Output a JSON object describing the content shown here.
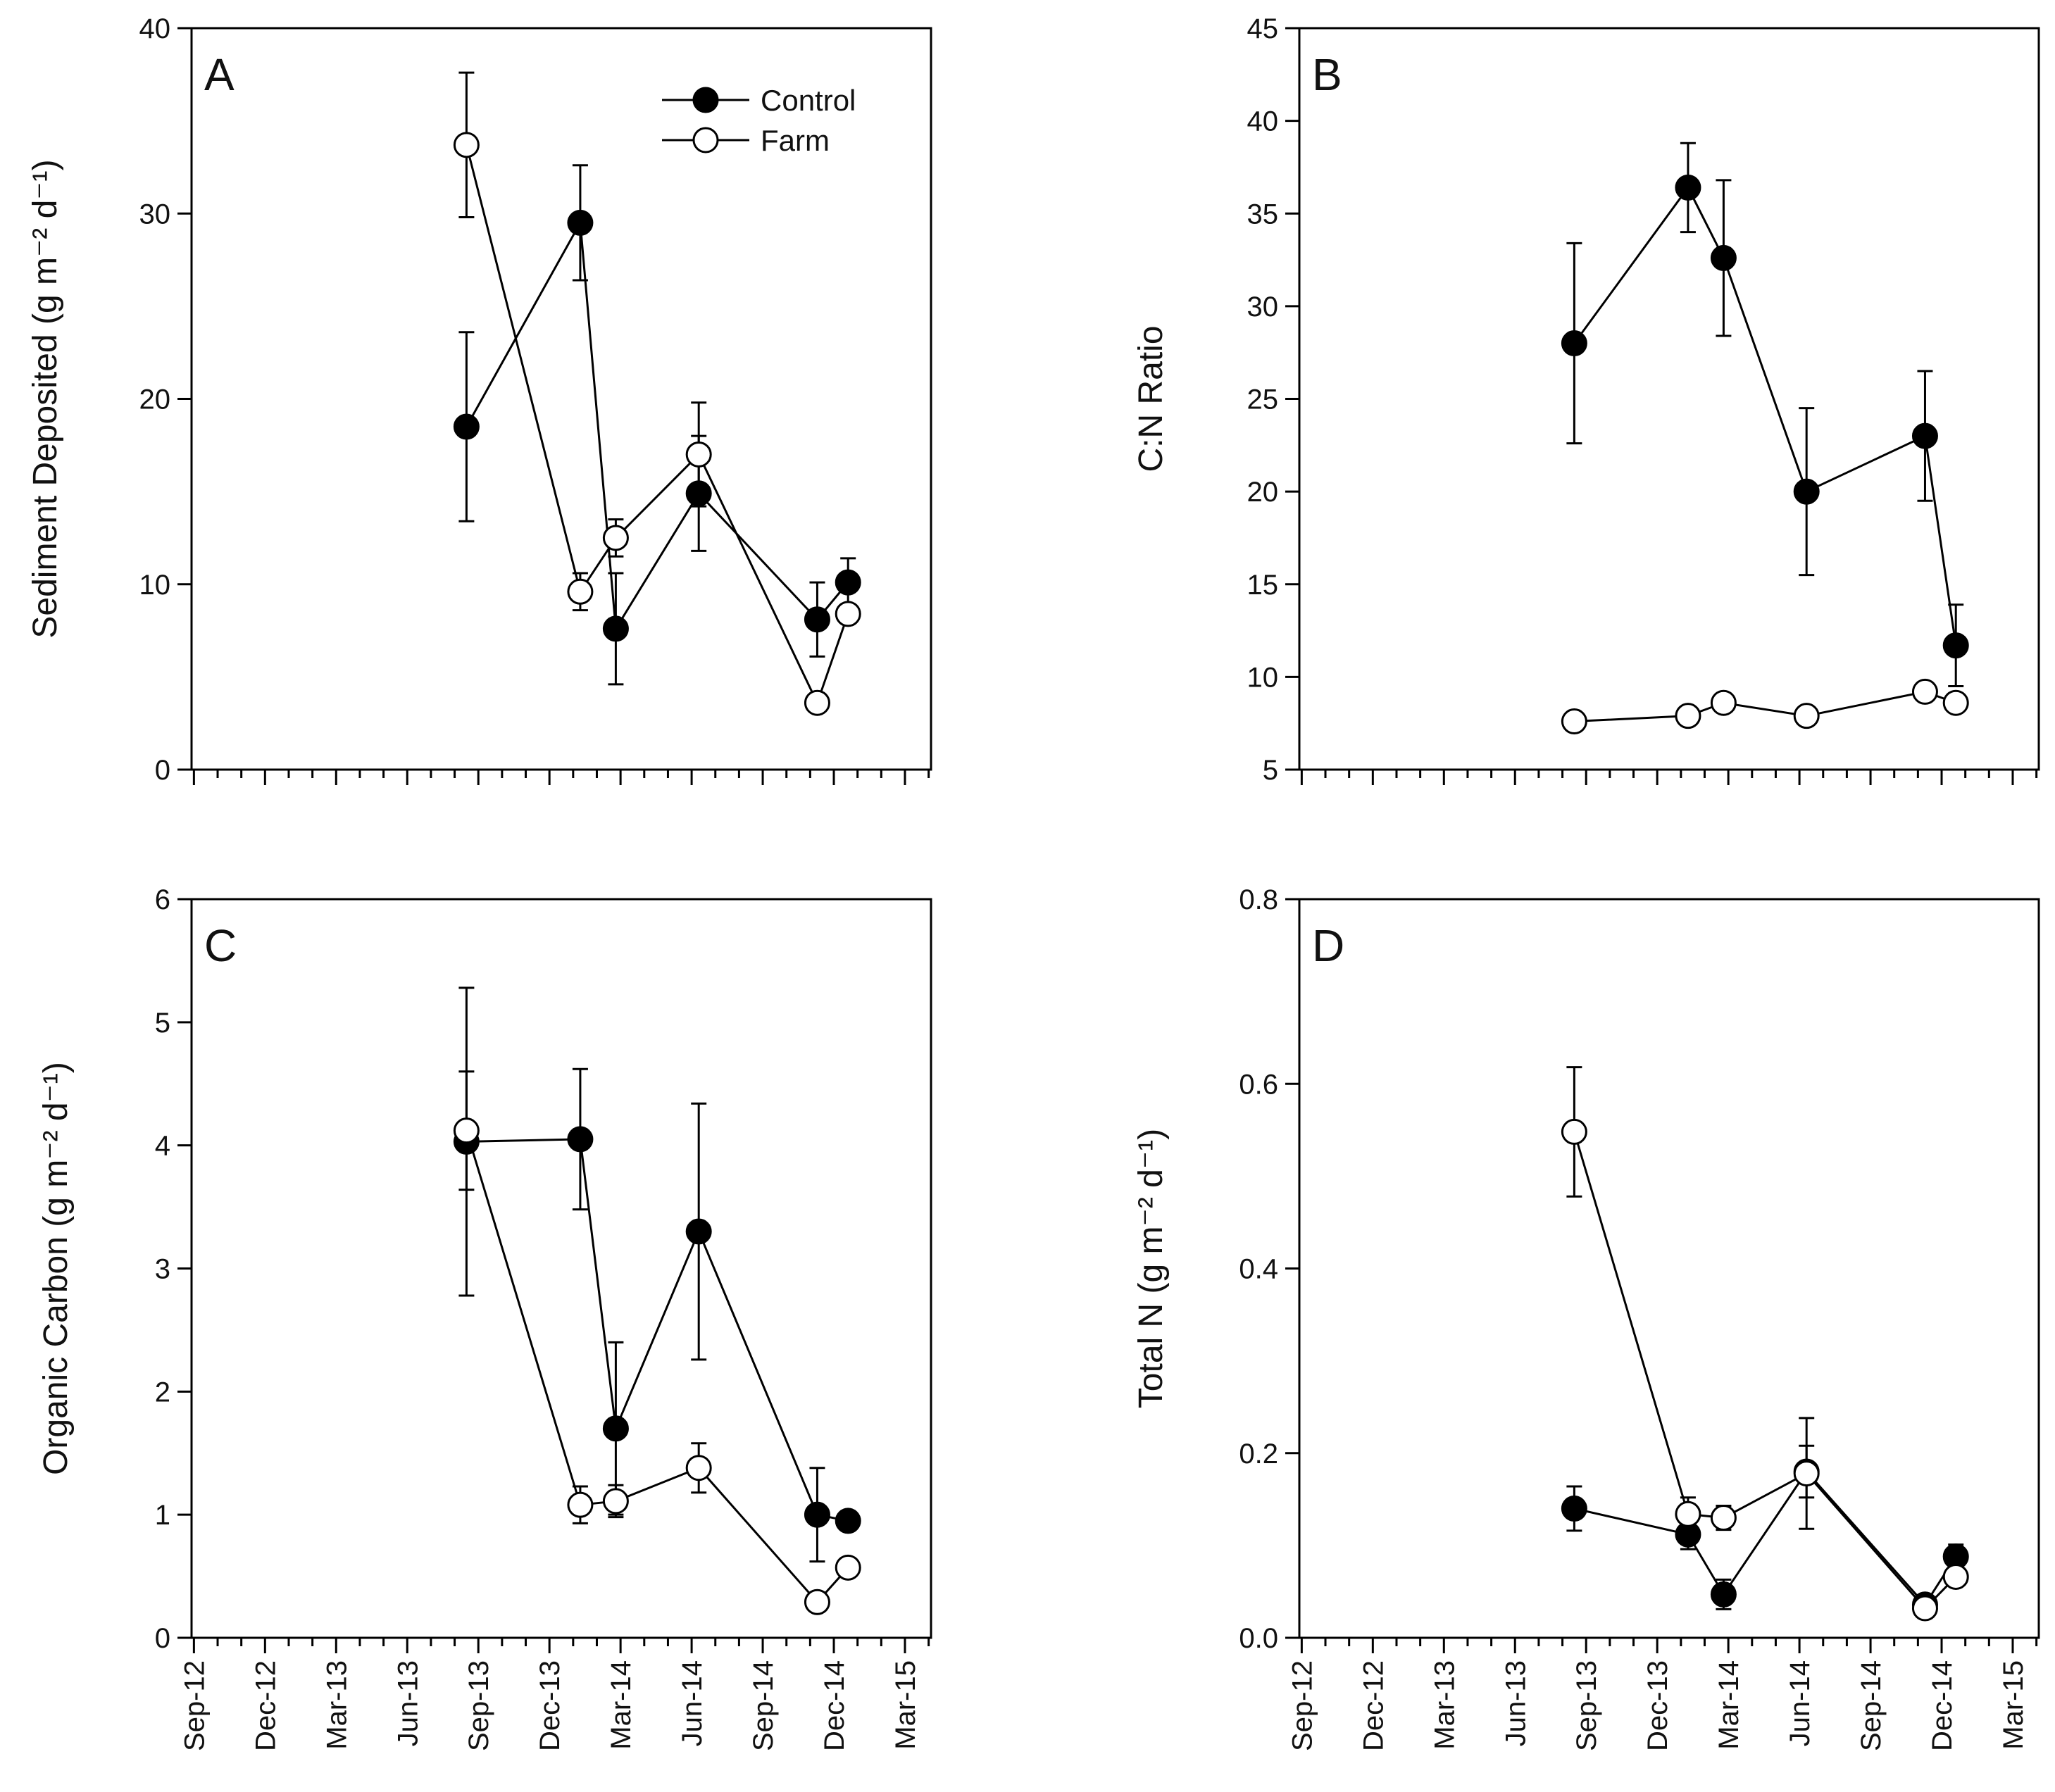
{
  "chart_data": [
    {
      "type": "line",
      "panel": "A",
      "ylabel": "Sediment Deposited (g m⁻² d⁻¹)",
      "ylim": [
        0,
        40
      ],
      "yticks": [
        "0",
        "10",
        "20",
        "30",
        "40"
      ],
      "xtick_labels": [
        "Sep-12",
        "Dec-12",
        "Mar-13",
        "Jun-13",
        "Sep-13",
        "Dec-13",
        "Mar-14",
        "Jun-14",
        "Sep-14",
        "Dec-14",
        "Mar-15"
      ],
      "legend": {
        "position": "top-right",
        "entries": [
          "Control",
          "Farm"
        ]
      },
      "series": [
        {
          "name": "Control",
          "marker": "filled",
          "x": [
            11.5,
            16.3,
            17.8,
            21.3,
            26.3,
            27.6
          ],
          "values": [
            18.5,
            29.5,
            7.6,
            14.9,
            8.1,
            10.1
          ],
          "errors": [
            5.1,
            3.1,
            3.0,
            3.1,
            2.0,
            1.3
          ]
        },
        {
          "name": "Farm",
          "marker": "open",
          "x": [
            11.5,
            16.3,
            17.8,
            21.3,
            26.3,
            27.6
          ],
          "values": [
            33.7,
            9.6,
            12.5,
            17.0,
            3.6,
            8.4
          ],
          "errors": [
            3.9,
            1.0,
            1.0,
            2.8,
            0.3,
            0.5
          ]
        }
      ]
    },
    {
      "type": "line",
      "panel": "B",
      "ylabel": "C:N Ratio",
      "ylim": [
        5,
        45
      ],
      "yticks": [
        "5",
        "10",
        "15",
        "20",
        "25",
        "30",
        "35",
        "40",
        "45"
      ],
      "xtick_labels": [
        "Sep-12",
        "Dec-12",
        "Mar-13",
        "Jun-13",
        "Sep-13",
        "Dec-13",
        "Mar-14",
        "Jun-14",
        "Sep-14",
        "Dec-14",
        "Mar-15"
      ],
      "series": [
        {
          "name": "Control",
          "marker": "filled",
          "x": [
            11.5,
            16.3,
            17.8,
            21.3,
            26.3,
            27.6
          ],
          "values": [
            28.0,
            36.4,
            32.6,
            20.0,
            23.0,
            11.7
          ],
          "errors": [
            5.4,
            2.4,
            4.2,
            4.5,
            3.5,
            2.2
          ]
        },
        {
          "name": "Farm",
          "marker": "open",
          "x": [
            11.5,
            16.3,
            17.8,
            21.3,
            26.3,
            27.6
          ],
          "values": [
            7.6,
            7.9,
            8.6,
            7.9,
            9.2,
            8.6
          ],
          "errors": [
            0.2,
            0.2,
            0.2,
            0.2,
            0.3,
            0.3
          ]
        }
      ]
    },
    {
      "type": "line",
      "panel": "C",
      "ylabel": "Organic Carbon (g m⁻² d⁻¹)",
      "ylim": [
        0,
        6
      ],
      "yticks": [
        "0",
        "1",
        "2",
        "3",
        "4",
        "5",
        "6"
      ],
      "xtick_labels": [
        "Sep-12",
        "Dec-12",
        "Mar-13",
        "Jun-13",
        "Sep-13",
        "Dec-13",
        "Mar-14",
        "Jun-14",
        "Sep-14",
        "Dec-14",
        "Mar-15"
      ],
      "series": [
        {
          "name": "Control",
          "marker": "filled",
          "x": [
            11.5,
            16.3,
            17.8,
            21.3,
            26.3,
            27.6
          ],
          "values": [
            4.03,
            4.05,
            1.7,
            3.3,
            1.0,
            0.95
          ],
          "errors": [
            1.25,
            0.57,
            0.7,
            1.04,
            0.38,
            0.04
          ]
        },
        {
          "name": "Farm",
          "marker": "open",
          "x": [
            11.5,
            16.3,
            17.8,
            21.3,
            26.3,
            27.6
          ],
          "values": [
            4.12,
            1.08,
            1.11,
            1.38,
            0.29,
            0.57
          ],
          "errors": [
            0.48,
            0.15,
            0.13,
            0.2,
            0.03,
            0.05
          ]
        }
      ]
    },
    {
      "type": "line",
      "panel": "D",
      "ylabel": "Total N (g m⁻² d⁻¹)",
      "ylim": [
        0,
        0.8
      ],
      "yticks": [
        "0.0",
        "0.2",
        "0.4",
        "0.6",
        "0.8"
      ],
      "xtick_labels": [
        "Sep-12",
        "Dec-12",
        "Mar-13",
        "Jun-13",
        "Sep-13",
        "Dec-13",
        "Mar-14",
        "Jun-14",
        "Sep-14",
        "Dec-14",
        "Mar-15"
      ],
      "series": [
        {
          "name": "Control",
          "marker": "filled",
          "x": [
            11.5,
            16.3,
            17.8,
            21.3,
            26.3,
            27.6
          ],
          "values": [
            0.14,
            0.112,
            0.047,
            0.18,
            0.036,
            0.088
          ],
          "errors": [
            0.024,
            0.016,
            0.016,
            0.028,
            0.004,
            0.013
          ]
        },
        {
          "name": "Farm",
          "marker": "open",
          "x": [
            11.5,
            16.3,
            17.8,
            21.3,
            26.3,
            27.6
          ],
          "values": [
            0.548,
            0.134,
            0.13,
            0.178,
            0.032,
            0.066
          ],
          "errors": [
            0.07,
            0.018,
            0.013,
            0.06,
            0.004,
            0.006
          ]
        }
      ]
    }
  ]
}
